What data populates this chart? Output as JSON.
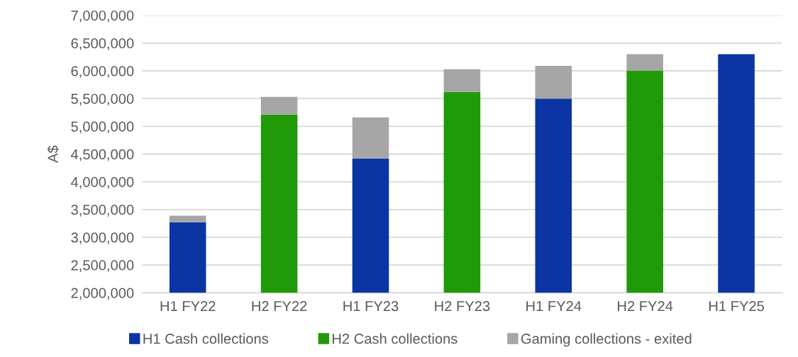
{
  "chart_data": {
    "type": "bar",
    "stacked": true,
    "ylabel": "A$",
    "categories": [
      "H1 FY22",
      "H2 FY22",
      "H1 FY23",
      "H2 FY23",
      "H1 FY24",
      "H2 FY24",
      "H1 FY25"
    ],
    "series": [
      {
        "name": "H1 Cash collections",
        "color": "#0b35a3",
        "values": [
          3270000,
          null,
          4420000,
          null,
          5500000,
          null,
          6300000
        ]
      },
      {
        "name": "H2 Cash collections",
        "color": "#209a08",
        "values": [
          null,
          5210000,
          null,
          5620000,
          null,
          6000000,
          null
        ]
      },
      {
        "name": "Gaming collections - exited",
        "color": "#a6a6a6",
        "base": [
          3270000,
          5210000,
          4420000,
          5620000,
          5500000,
          6000000,
          null
        ],
        "values": [
          120000,
          320000,
          740000,
          410000,
          590000,
          300000,
          null
        ]
      }
    ],
    "ylim": [
      2000000,
      7000000
    ],
    "yticks": [
      {
        "value": 2000000,
        "label": "2,000,000"
      },
      {
        "value": 2500000,
        "label": "2,500,000"
      },
      {
        "value": 3000000,
        "label": "3,000,000"
      },
      {
        "value": 3500000,
        "label": "3,500,000"
      },
      {
        "value": 4000000,
        "label": "4,000,000"
      },
      {
        "value": 4500000,
        "label": "4,500,000"
      },
      {
        "value": 5000000,
        "label": "5,000,000"
      },
      {
        "value": 5500000,
        "label": "5,500,000"
      },
      {
        "value": 6000000,
        "label": "6,000,000"
      },
      {
        "value": 6500000,
        "label": "6,500,000"
      },
      {
        "value": 7000000,
        "label": "7,000,000"
      }
    ],
    "grid": "y",
    "legend": "bottom"
  }
}
